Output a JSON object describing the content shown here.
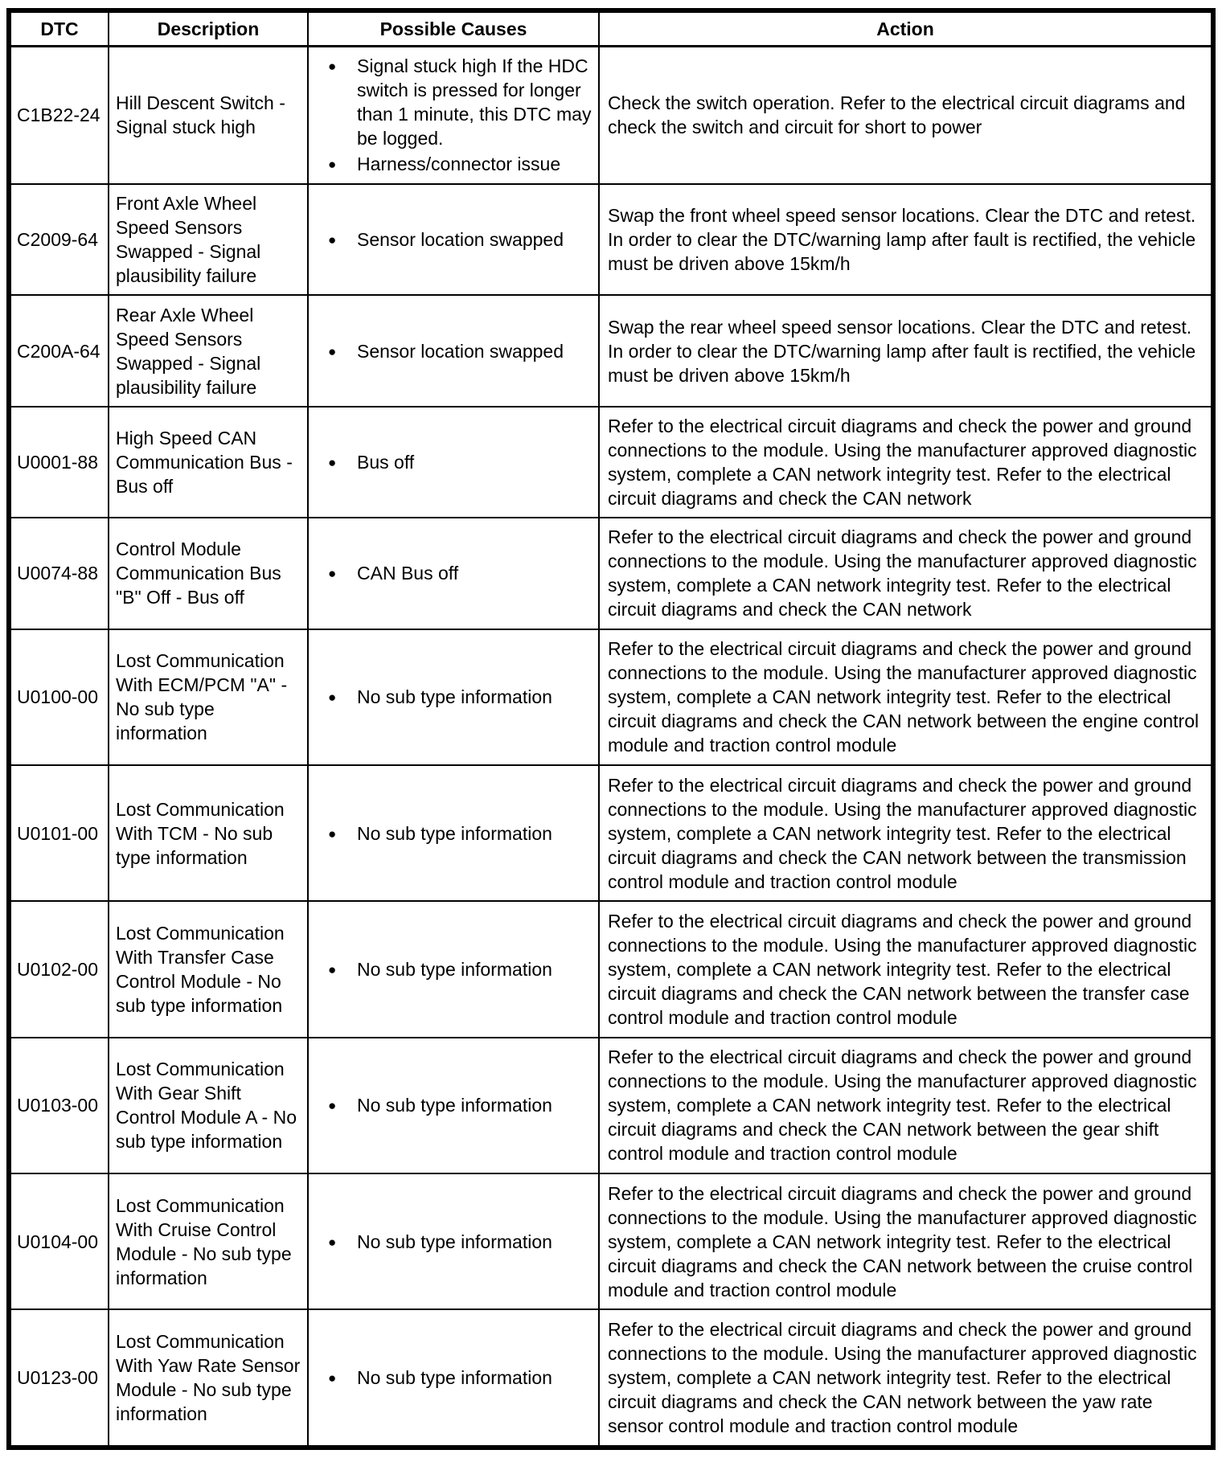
{
  "table": {
    "headers": [
      "DTC",
      "Description",
      "Possible Causes",
      "Action"
    ],
    "rows": [
      {
        "dtc": "C1B22-24",
        "description": "Hill Descent Switch - Signal stuck high",
        "causes": [
          "Signal stuck high If the HDC switch is pressed for longer than 1 minute, this DTC may be logged.",
          "Harness/connector issue"
        ],
        "action": "Check the switch operation. Refer to the electrical circuit diagrams and check the switch and circuit for short to power"
      },
      {
        "dtc": "C2009-64",
        "description": "Front Axle Wheel Speed Sensors Swapped - Signal plausibility failure",
        "causes": [
          "Sensor location swapped"
        ],
        "action": "Swap the front wheel speed sensor locations. Clear the DTC and retest. In order to clear the DTC/warning lamp after fault is rectified, the vehicle must be driven above 15km/h"
      },
      {
        "dtc": "C200A-64",
        "description": "Rear Axle Wheel Speed Sensors Swapped - Signal plausibility failure",
        "causes": [
          "Sensor location swapped"
        ],
        "action": "Swap the rear wheel speed sensor locations. Clear the DTC and retest. In order to clear the DTC/warning lamp after fault is rectified, the vehicle must be driven above 15km/h"
      },
      {
        "dtc": "U0001-88",
        "description": "High Speed CAN Communication Bus - Bus off",
        "causes": [
          "Bus off"
        ],
        "action": "Refer to the electrical circuit diagrams and check the power and ground connections to the module. Using the manufacturer approved diagnostic system, complete a CAN network integrity test. Refer to the electrical circuit diagrams and check the CAN network"
      },
      {
        "dtc": "U0074-88",
        "description": "Control Module Communication Bus \"B\" Off - Bus off",
        "causes": [
          "CAN Bus off"
        ],
        "action": "Refer to the electrical circuit diagrams and check the power and ground connections to the module. Using the manufacturer approved diagnostic system, complete a CAN network integrity test. Refer to the electrical circuit diagrams and check the CAN network"
      },
      {
        "dtc": "U0100-00",
        "description": "Lost Communication With ECM/PCM \"A\" - No sub type information",
        "causes": [
          "No sub type information"
        ],
        "action": "Refer to the electrical circuit diagrams and check the power and ground connections to the module. Using the manufacturer approved diagnostic system, complete a CAN network integrity test. Refer to the electrical circuit diagrams and check the CAN network between the engine control module and traction control module"
      },
      {
        "dtc": "U0101-00",
        "description": "Lost Communication With TCM - No sub type information",
        "causes": [
          "No sub type information"
        ],
        "action": "Refer to the electrical circuit diagrams and check the power and ground connections to the module. Using the manufacturer approved diagnostic system, complete a CAN network integrity test. Refer to the electrical circuit diagrams and check the CAN network between the transmission control module and traction control module"
      },
      {
        "dtc": "U0102-00",
        "description": "Lost Communication With Transfer Case Control Module - No sub type information",
        "causes": [
          "No sub type information"
        ],
        "action": "Refer to the electrical circuit diagrams and check the power and ground connections to the module. Using the manufacturer approved diagnostic system, complete a CAN network integrity test. Refer to the electrical circuit diagrams and check the CAN network between the transfer case control module and traction control module"
      },
      {
        "dtc": "U0103-00",
        "description": "Lost Communication With Gear Shift Control Module A - No sub type information",
        "causes": [
          "No sub type information"
        ],
        "action": "Refer to the electrical circuit diagrams and check the power and ground connections to the module. Using the manufacturer approved diagnostic system, complete a CAN network integrity test. Refer to the electrical circuit diagrams and check the CAN network between the gear shift control module and traction control module"
      },
      {
        "dtc": "U0104-00",
        "description": "Lost Communication With Cruise Control Module - No sub type information",
        "causes": [
          "No sub type information"
        ],
        "action": "Refer to the electrical circuit diagrams and check the power and ground connections to the module. Using the manufacturer approved diagnostic system, complete a CAN network integrity test. Refer to the electrical circuit diagrams and check the CAN network between the cruise control module and traction control module"
      },
      {
        "dtc": "U0123-00",
        "description": "Lost Communication With Yaw Rate Sensor Module - No sub type information",
        "causes": [
          "No sub type information"
        ],
        "action": "Refer to the electrical circuit diagrams and check the power and ground connections to the module. Using the manufacturer approved diagnostic system, complete a CAN network integrity test. Refer to the electrical circuit diagrams and check the CAN network between the yaw rate sensor control module and traction control module"
      }
    ]
  }
}
